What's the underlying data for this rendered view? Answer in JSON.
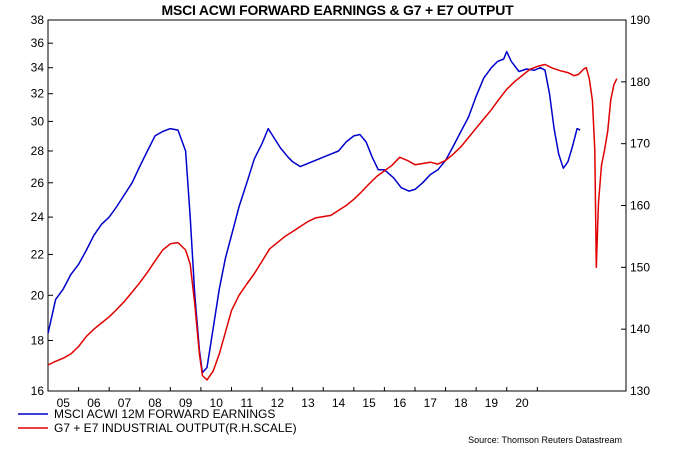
{
  "chart_data": {
    "type": "line",
    "title": "MSCI ACWI FORWARD EARNINGS & G7 + E7 OUTPUT",
    "source": "Source: Thomson Reuters Datastream",
    "x_ticks": [
      "05",
      "06",
      "07",
      "08",
      "09",
      "10",
      "11",
      "12",
      "13",
      "14",
      "15",
      "16",
      "17",
      "18",
      "19",
      "20"
    ],
    "left_axis": {
      "min": 16,
      "max": 38,
      "ticks": [
        16,
        18,
        20,
        22,
        24,
        26,
        28,
        30,
        32,
        34,
        36,
        38
      ],
      "log_scale": true
    },
    "right_axis": {
      "min": 130,
      "max": 190,
      "ticks": [
        130,
        140,
        150,
        160,
        170,
        180,
        190
      ]
    },
    "grid": false,
    "legend_position": "bottom-left",
    "series": [
      {
        "name": "MSCI ACWI 12M FORWARD EARNINGS",
        "axis": "left",
        "color": "#0000cc",
        "points": [
          [
            2004.0,
            18.3
          ],
          [
            2004.25,
            19.8
          ],
          [
            2004.5,
            20.3
          ],
          [
            2004.75,
            21.0
          ],
          [
            2005.0,
            21.5
          ],
          [
            2005.25,
            22.2
          ],
          [
            2005.5,
            23.0
          ],
          [
            2005.75,
            23.6
          ],
          [
            2006.0,
            24.0
          ],
          [
            2006.25,
            24.6
          ],
          [
            2006.5,
            25.3
          ],
          [
            2006.75,
            26.0
          ],
          [
            2007.0,
            27.0
          ],
          [
            2007.25,
            28.0
          ],
          [
            2007.5,
            29.0
          ],
          [
            2007.75,
            29.3
          ],
          [
            2008.0,
            29.5
          ],
          [
            2008.25,
            29.4
          ],
          [
            2008.5,
            28.0
          ],
          [
            2008.65,
            24.0
          ],
          [
            2008.8,
            20.0
          ],
          [
            2008.95,
            17.6
          ],
          [
            2009.05,
            16.7
          ],
          [
            2009.2,
            16.9
          ],
          [
            2009.4,
            18.5
          ],
          [
            2009.6,
            20.3
          ],
          [
            2009.8,
            21.8
          ],
          [
            2010.0,
            23.0
          ],
          [
            2010.25,
            24.6
          ],
          [
            2010.5,
            26.0
          ],
          [
            2010.75,
            27.5
          ],
          [
            2011.0,
            28.5
          ],
          [
            2011.2,
            29.5
          ],
          [
            2011.35,
            29.0
          ],
          [
            2011.6,
            28.2
          ],
          [
            2011.85,
            27.6
          ],
          [
            2012.0,
            27.3
          ],
          [
            2012.25,
            27.0
          ],
          [
            2012.5,
            27.2
          ],
          [
            2012.75,
            27.4
          ],
          [
            2013.0,
            27.6
          ],
          [
            2013.25,
            27.8
          ],
          [
            2013.5,
            28.0
          ],
          [
            2013.75,
            28.6
          ],
          [
            2014.0,
            29.0
          ],
          [
            2014.2,
            29.1
          ],
          [
            2014.4,
            28.6
          ],
          [
            2014.6,
            27.6
          ],
          [
            2014.8,
            26.8
          ],
          [
            2015.0,
            26.8
          ],
          [
            2015.3,
            26.3
          ],
          [
            2015.55,
            25.7
          ],
          [
            2015.8,
            25.5
          ],
          [
            2016.0,
            25.6
          ],
          [
            2016.25,
            26.0
          ],
          [
            2016.5,
            26.5
          ],
          [
            2016.75,
            26.8
          ],
          [
            2017.0,
            27.4
          ],
          [
            2017.25,
            28.3
          ],
          [
            2017.5,
            29.3
          ],
          [
            2017.75,
            30.3
          ],
          [
            2018.0,
            31.8
          ],
          [
            2018.25,
            33.2
          ],
          [
            2018.5,
            34.0
          ],
          [
            2018.7,
            34.5
          ],
          [
            2018.9,
            34.7
          ],
          [
            2019.0,
            35.3
          ],
          [
            2019.15,
            34.5
          ],
          [
            2019.4,
            33.7
          ],
          [
            2019.65,
            33.9
          ],
          [
            2019.9,
            33.8
          ],
          [
            2020.1,
            34.0
          ],
          [
            2020.25,
            33.8
          ],
          [
            2020.4,
            32.0
          ],
          [
            2020.55,
            29.5
          ],
          [
            2020.7,
            27.8
          ],
          [
            2020.85,
            26.9
          ],
          [
            2021.0,
            27.3
          ],
          [
            2021.15,
            28.3
          ],
          [
            2021.3,
            29.5
          ],
          [
            2021.4,
            29.4
          ]
        ]
      },
      {
        "name": "G7 + E7 INDUSTRIAL OUTPUT(R.H.SCALE)",
        "axis": "right",
        "color": "#e00000",
        "points": [
          [
            2004.0,
            134.2
          ],
          [
            2004.25,
            134.8
          ],
          [
            2004.5,
            135.3
          ],
          [
            2004.75,
            136.0
          ],
          [
            2005.0,
            137.2
          ],
          [
            2005.25,
            138.8
          ],
          [
            2005.5,
            140.0
          ],
          [
            2005.75,
            141.0
          ],
          [
            2006.0,
            142.0
          ],
          [
            2006.25,
            143.2
          ],
          [
            2006.5,
            144.5
          ],
          [
            2006.75,
            146.0
          ],
          [
            2007.0,
            147.5
          ],
          [
            2007.25,
            149.2
          ],
          [
            2007.5,
            151.0
          ],
          [
            2007.75,
            152.8
          ],
          [
            2008.0,
            153.8
          ],
          [
            2008.25,
            154.0
          ],
          [
            2008.5,
            152.8
          ],
          [
            2008.65,
            150.5
          ],
          [
            2008.8,
            144.0
          ],
          [
            2008.95,
            136.0
          ],
          [
            2009.05,
            132.5
          ],
          [
            2009.2,
            131.8
          ],
          [
            2009.4,
            133.2
          ],
          [
            2009.6,
            136.0
          ],
          [
            2009.8,
            139.5
          ],
          [
            2010.0,
            143.0
          ],
          [
            2010.25,
            145.5
          ],
          [
            2010.5,
            147.3
          ],
          [
            2010.75,
            149.0
          ],
          [
            2011.0,
            151.0
          ],
          [
            2011.25,
            153.0
          ],
          [
            2011.5,
            154.0
          ],
          [
            2011.75,
            155.0
          ],
          [
            2012.0,
            155.8
          ],
          [
            2012.25,
            156.6
          ],
          [
            2012.5,
            157.4
          ],
          [
            2012.75,
            158.0
          ],
          [
            2013.0,
            158.2
          ],
          [
            2013.25,
            158.4
          ],
          [
            2013.5,
            159.2
          ],
          [
            2013.75,
            160.0
          ],
          [
            2014.0,
            161.0
          ],
          [
            2014.25,
            162.2
          ],
          [
            2014.5,
            163.5
          ],
          [
            2014.75,
            164.7
          ],
          [
            2015.0,
            165.6
          ],
          [
            2015.25,
            166.5
          ],
          [
            2015.5,
            167.8
          ],
          [
            2015.75,
            167.3
          ],
          [
            2016.0,
            166.6
          ],
          [
            2016.25,
            166.8
          ],
          [
            2016.5,
            167.0
          ],
          [
            2016.75,
            166.7
          ],
          [
            2017.0,
            167.3
          ],
          [
            2017.25,
            168.3
          ],
          [
            2017.5,
            169.5
          ],
          [
            2017.75,
            171.0
          ],
          [
            2018.0,
            172.5
          ],
          [
            2018.25,
            174.0
          ],
          [
            2018.5,
            175.5
          ],
          [
            2018.75,
            177.2
          ],
          [
            2019.0,
            178.8
          ],
          [
            2019.25,
            180.0
          ],
          [
            2019.5,
            181.0
          ],
          [
            2019.75,
            182.0
          ],
          [
            2020.0,
            182.5
          ],
          [
            2020.25,
            182.8
          ],
          [
            2020.5,
            182.2
          ],
          [
            2020.75,
            181.8
          ],
          [
            2021.0,
            181.5
          ],
          [
            2021.2,
            181.0
          ],
          [
            2021.35,
            181.2
          ],
          [
            2021.5,
            182.0
          ],
          [
            2021.6,
            182.3
          ],
          [
            2021.7,
            180.5
          ],
          [
            2021.8,
            177.0
          ],
          [
            2021.88,
            169.0
          ],
          [
            2021.93,
            150.0
          ],
          [
            2022.0,
            160.5
          ],
          [
            2022.1,
            166.5
          ],
          [
            2022.2,
            169.0
          ],
          [
            2022.3,
            172.0
          ],
          [
            2022.4,
            177.0
          ],
          [
            2022.5,
            179.5
          ],
          [
            2022.6,
            180.5
          ]
        ]
      }
    ]
  }
}
